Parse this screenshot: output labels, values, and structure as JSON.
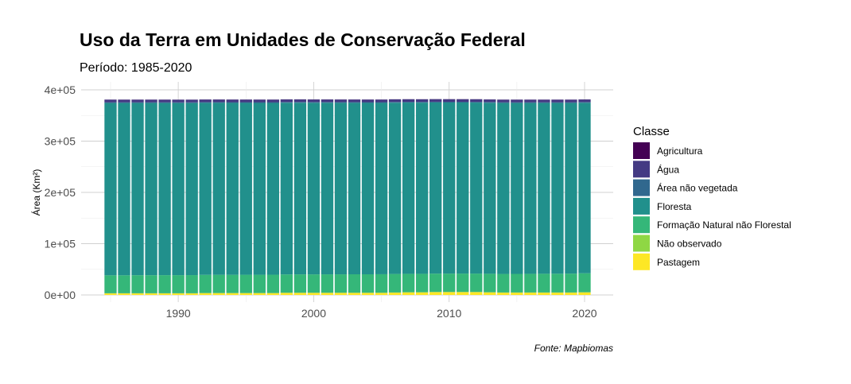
{
  "chart_data": {
    "type": "bar",
    "stacked": true,
    "title": "Uso da Terra em Unidades de Conservação Federal",
    "subtitle": "Período: 1985-2020",
    "xlabel": "",
    "ylabel": "Área (Km²)",
    "caption": "Fonte: Mapbiomas",
    "x": [
      1985,
      1986,
      1987,
      1988,
      1989,
      1990,
      1991,
      1992,
      1993,
      1994,
      1995,
      1996,
      1997,
      1998,
      1999,
      2000,
      2001,
      2002,
      2003,
      2004,
      2005,
      2006,
      2007,
      2008,
      2009,
      2010,
      2011,
      2012,
      2013,
      2014,
      2015,
      2016,
      2017,
      2018,
      2019,
      2020
    ],
    "x_ticks": [
      1990,
      2000,
      2010,
      2020
    ],
    "x_tick_labels": [
      "1990",
      "2000",
      "2010",
      "2020"
    ],
    "ylim": [
      0,
      400000
    ],
    "y_ticks": [
      0,
      100000,
      200000,
      300000,
      400000
    ],
    "y_tick_labels": [
      "0e+00",
      "1e+05",
      "2e+05",
      "3e+05",
      "4e+05"
    ],
    "legend_title": "Classe",
    "legend_position": "right",
    "grid": true,
    "series": [
      {
        "name": "Pastagem",
        "color": "#FDE725",
        "values": [
          3000,
          3000,
          3000,
          3000,
          3000,
          3000,
          3000,
          3500,
          3500,
          3500,
          3500,
          3500,
          3500,
          4000,
          4000,
          4000,
          4000,
          4000,
          4000,
          4000,
          4000,
          4500,
          5000,
          5000,
          5500,
          5500,
          5500,
          5500,
          5000,
          4500,
          4500,
          4500,
          4500,
          4500,
          4500,
          5000
        ]
      },
      {
        "name": "Não observado",
        "color": "#8FD744",
        "values": [
          300,
          300,
          300,
          300,
          300,
          300,
          300,
          300,
          300,
          300,
          300,
          300,
          300,
          300,
          300,
          300,
          300,
          300,
          300,
          300,
          300,
          300,
          300,
          300,
          300,
          300,
          300,
          300,
          300,
          300,
          300,
          300,
          300,
          300,
          300,
          300
        ]
      },
      {
        "name": "Formação Natural não Florestal",
        "color": "#35B779",
        "values": [
          35000,
          35000,
          35200,
          35200,
          35300,
          35300,
          35400,
          35400,
          35500,
          35500,
          35600,
          35600,
          35700,
          35700,
          35800,
          35800,
          35900,
          35900,
          36000,
          36000,
          36100,
          36100,
          35900,
          35900,
          35800,
          35800,
          35900,
          35900,
          36000,
          36200,
          36300,
          36400,
          36500,
          36600,
          36800,
          37000
        ]
      },
      {
        "name": "Floresta",
        "color": "#21908C",
        "values": [
          336000,
          336000,
          335800,
          335800,
          335700,
          335600,
          335500,
          335400,
          335300,
          335200,
          335100,
          335000,
          334900,
          334800,
          334700,
          334600,
          334500,
          334400,
          334300,
          334200,
          334100,
          334000,
          333900,
          333800,
          333700,
          333600,
          333500,
          333400,
          333400,
          333300,
          333200,
          333100,
          333000,
          332900,
          332700,
          332400
        ]
      },
      {
        "name": "Área não vegetada",
        "color": "#31688E",
        "values": [
          1500,
          1500,
          1500,
          1500,
          1500,
          1500,
          1500,
          1500,
          1500,
          1500,
          1500,
          1500,
          1500,
          1500,
          1500,
          1500,
          1500,
          1500,
          1500,
          1500,
          1500,
          1500,
          1500,
          1500,
          1500,
          1500,
          1500,
          1500,
          1500,
          1500,
          1500,
          1500,
          1500,
          1500,
          1500,
          1500
        ]
      },
      {
        "name": "Água",
        "color": "#443A83",
        "values": [
          5000,
          5000,
          5000,
          5000,
          5000,
          5000,
          5000,
          5000,
          5000,
          5000,
          5000,
          5000,
          5000,
          5000,
          5000,
          5000,
          5000,
          5000,
          5000,
          5000,
          5000,
          5000,
          5000,
          5000,
          5000,
          5000,
          5000,
          5000,
          5000,
          5000,
          5000,
          5000,
          5000,
          5000,
          5000,
          5000
        ]
      },
      {
        "name": "Agricultura",
        "color": "#440154",
        "values": [
          200,
          200,
          200,
          200,
          200,
          200,
          200,
          200,
          200,
          200,
          200,
          200,
          200,
          200,
          200,
          200,
          200,
          200,
          200,
          200,
          200,
          200,
          200,
          200,
          200,
          200,
          200,
          200,
          200,
          200,
          200,
          200,
          200,
          200,
          200,
          200
        ]
      }
    ],
    "legend_order": [
      "Agricultura",
      "Água",
      "Área não vegetada",
      "Floresta",
      "Formação Natural não Florestal",
      "Não observado",
      "Pastagem"
    ]
  }
}
